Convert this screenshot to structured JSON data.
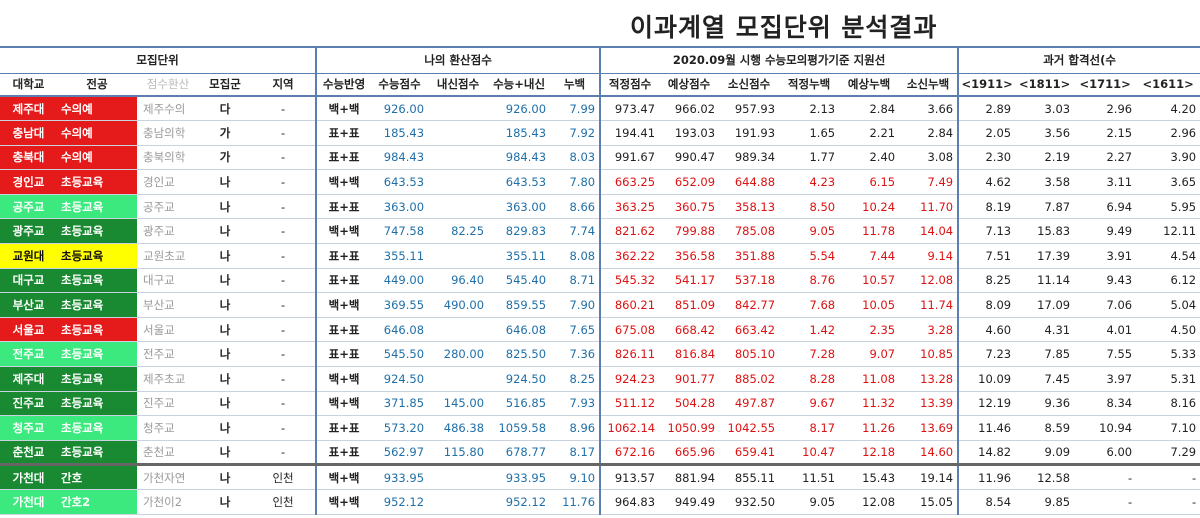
{
  "title": "이과계열 모집단위 분석결과",
  "colors": {
    "red": "#e51b1b",
    "dark_green": "#1a8a32",
    "light_green": "#3ce97e",
    "yellow": "#ffff00",
    "header_border": "#5a7fb0",
    "blue_text": "#1f6fa8",
    "red_text": "#d11111"
  },
  "group_headers": {
    "recruit": "모집단위",
    "my_score": "나의 환산점수",
    "mock": "2020.09월 시행 수능모의평가기준 지원선",
    "past": "과거 합격선(수"
  },
  "headers": [
    "대학교",
    "전공",
    "점수환산",
    "모집군",
    "지역",
    "수능반영",
    "수능점수",
    "내신점수",
    "수능+내신",
    "누백",
    "적정점수",
    "예상점수",
    "소신점수",
    "적정누백",
    "예상누백",
    "소신누백",
    "<1911>",
    "<1811>",
    "<1711>",
    "<1611>"
  ],
  "rows": [
    {
      "color": "red",
      "univ": "제주대",
      "major": "수의예",
      "conv": "제주수의",
      "gun": "다",
      "region": "-",
      "ref": "백+백",
      "suneung": "926.00",
      "naesin": "",
      "sum": "926.00",
      "nubaek": "7.99",
      "v": [
        "973.47",
        "966.02",
        "957.93",
        "2.13",
        "2.84",
        "3.66"
      ],
      "red_v": false,
      "past": [
        "2.89",
        "3.03",
        "2.96",
        "4.20"
      ]
    },
    {
      "color": "red",
      "univ": "충남대",
      "major": "수의예",
      "conv": "충남의학",
      "gun": "가",
      "region": "-",
      "ref": "표+표",
      "suneung": "185.43",
      "naesin": "",
      "sum": "185.43",
      "nubaek": "7.92",
      "v": [
        "194.41",
        "193.03",
        "191.93",
        "1.65",
        "2.21",
        "2.84"
      ],
      "red_v": false,
      "past": [
        "2.05",
        "3.56",
        "2.15",
        "2.96"
      ]
    },
    {
      "color": "red",
      "univ": "충북대",
      "major": "수의예",
      "conv": "충북의학",
      "gun": "가",
      "region": "-",
      "ref": "표+표",
      "suneung": "984.43",
      "naesin": "",
      "sum": "984.43",
      "nubaek": "8.03",
      "v": [
        "991.67",
        "990.47",
        "989.34",
        "1.77",
        "2.40",
        "3.08"
      ],
      "red_v": false,
      "past": [
        "2.30",
        "2.19",
        "2.27",
        "3.90"
      ]
    },
    {
      "color": "red",
      "univ": "경인교",
      "major": "초등교육",
      "conv": "경인교",
      "gun": "나",
      "region": "-",
      "ref": "백+백",
      "suneung": "643.53",
      "naesin": "",
      "sum": "643.53",
      "nubaek": "7.80",
      "v": [
        "663.25",
        "652.09",
        "644.88",
        "4.23",
        "6.15",
        "7.49"
      ],
      "red_v": true,
      "past": [
        "4.62",
        "3.58",
        "3.11",
        "3.65"
      ]
    },
    {
      "color": "light_green",
      "univ": "공주교",
      "major": "초등교육",
      "conv": "공주교",
      "gun": "나",
      "region": "-",
      "ref": "표+표",
      "suneung": "363.00",
      "naesin": "",
      "sum": "363.00",
      "nubaek": "8.66",
      "v": [
        "363.25",
        "360.75",
        "358.13",
        "8.50",
        "10.24",
        "11.70"
      ],
      "red_v": true,
      "past": [
        "8.19",
        "7.87",
        "6.94",
        "5.95"
      ]
    },
    {
      "color": "dark_green",
      "univ": "광주교",
      "major": "초등교육",
      "conv": "광주교",
      "gun": "나",
      "region": "-",
      "ref": "백+백",
      "suneung": "747.58",
      "naesin": "82.25",
      "sum": "829.83",
      "nubaek": "7.74",
      "v": [
        "821.62",
        "799.88",
        "785.08",
        "9.05",
        "11.78",
        "14.04"
      ],
      "red_v": true,
      "past": [
        "7.13",
        "15.83",
        "9.49",
        "12.11"
      ]
    },
    {
      "color": "yellow",
      "univ": "교원대",
      "major": "초등교육",
      "conv": "교원초교",
      "gun": "나",
      "region": "-",
      "ref": "표+표",
      "suneung": "355.11",
      "naesin": "",
      "sum": "355.11",
      "nubaek": "8.08",
      "v": [
        "362.22",
        "356.58",
        "351.88",
        "5.54",
        "7.44",
        "9.14"
      ],
      "red_v": true,
      "past": [
        "7.51",
        "17.39",
        "3.91",
        "4.54"
      ]
    },
    {
      "color": "dark_green",
      "univ": "대구교",
      "major": "초등교육",
      "conv": "대구교",
      "gun": "나",
      "region": "-",
      "ref": "표+표",
      "suneung": "449.00",
      "naesin": "96.40",
      "sum": "545.40",
      "nubaek": "8.71",
      "v": [
        "545.32",
        "541.17",
        "537.18",
        "8.76",
        "10.57",
        "12.08"
      ],
      "red_v": true,
      "past": [
        "8.25",
        "11.14",
        "9.43",
        "6.12"
      ]
    },
    {
      "color": "dark_green",
      "univ": "부산교",
      "major": "초등교육",
      "conv": "부산교",
      "gun": "나",
      "region": "-",
      "ref": "백+백",
      "suneung": "369.55",
      "naesin": "490.00",
      "sum": "859.55",
      "nubaek": "7.90",
      "v": [
        "860.21",
        "851.09",
        "842.77",
        "7.68",
        "10.05",
        "11.74"
      ],
      "red_v": true,
      "past": [
        "8.09",
        "17.09",
        "7.06",
        "5.04"
      ]
    },
    {
      "color": "red",
      "univ": "서울교",
      "major": "초등교육",
      "conv": "서울교",
      "gun": "나",
      "region": "-",
      "ref": "표+표",
      "suneung": "646.08",
      "naesin": "",
      "sum": "646.08",
      "nubaek": "7.65",
      "v": [
        "675.08",
        "668.42",
        "663.42",
        "1.42",
        "2.35",
        "3.28"
      ],
      "red_v": true,
      "past": [
        "4.60",
        "4.31",
        "4.01",
        "4.50"
      ]
    },
    {
      "color": "light_green",
      "univ": "전주교",
      "major": "초등교육",
      "conv": "전주교",
      "gun": "나",
      "region": "-",
      "ref": "표+표",
      "suneung": "545.50",
      "naesin": "280.00",
      "sum": "825.50",
      "nubaek": "7.36",
      "v": [
        "826.11",
        "816.84",
        "805.10",
        "7.28",
        "9.07",
        "10.85"
      ],
      "red_v": true,
      "past": [
        "7.23",
        "7.85",
        "7.55",
        "5.33"
      ]
    },
    {
      "color": "dark_green",
      "univ": "제주대",
      "major": "초등교육",
      "conv": "제주초교",
      "gun": "나",
      "region": "-",
      "ref": "백+백",
      "suneung": "924.50",
      "naesin": "",
      "sum": "924.50",
      "nubaek": "8.25",
      "v": [
        "924.23",
        "901.77",
        "885.02",
        "8.28",
        "11.08",
        "13.28"
      ],
      "red_v": true,
      "past": [
        "10.09",
        "7.45",
        "3.97",
        "5.31"
      ]
    },
    {
      "color": "dark_green",
      "univ": "진주교",
      "major": "초등교육",
      "conv": "진주교",
      "gun": "나",
      "region": "-",
      "ref": "백+백",
      "suneung": "371.85",
      "naesin": "145.00",
      "sum": "516.85",
      "nubaek": "7.93",
      "v": [
        "511.12",
        "504.28",
        "497.87",
        "9.67",
        "11.32",
        "13.39"
      ],
      "red_v": true,
      "past": [
        "12.19",
        "9.36",
        "8.34",
        "8.16"
      ]
    },
    {
      "color": "light_green",
      "univ": "청주교",
      "major": "초등교육",
      "conv": "청주교",
      "gun": "나",
      "region": "-",
      "ref": "표+표",
      "suneung": "573.20",
      "naesin": "486.38",
      "sum": "1059.58",
      "nubaek": "8.96",
      "v": [
        "1062.14",
        "1050.99",
        "1042.55",
        "8.17",
        "11.26",
        "13.69"
      ],
      "red_v": true,
      "past": [
        "11.46",
        "8.59",
        "10.94",
        "7.10"
      ]
    },
    {
      "color": "dark_green",
      "univ": "춘천교",
      "major": "초등교육",
      "conv": "춘천교",
      "gun": "나",
      "region": "-",
      "ref": "표+표",
      "suneung": "562.97",
      "naesin": "115.80",
      "sum": "678.77",
      "nubaek": "8.17",
      "v": [
        "672.16",
        "665.96",
        "659.41",
        "10.47",
        "12.18",
        "14.60"
      ],
      "red_v": true,
      "past": [
        "14.82",
        "9.09",
        "6.00",
        "7.29"
      ]
    },
    {
      "color": "dark_green",
      "univ": "가천대",
      "major": "간호",
      "conv": "가천자연",
      "gun": "나",
      "region": "인천",
      "ref": "백+백",
      "suneung": "933.95",
      "naesin": "",
      "sum": "933.95",
      "nubaek": "9.10",
      "v": [
        "913.57",
        "881.94",
        "855.11",
        "11.51",
        "15.43",
        "19.14"
      ],
      "red_v": false,
      "past": [
        "11.96",
        "12.58",
        "-",
        "-"
      ],
      "group_start": true
    },
    {
      "color": "light_green",
      "univ": "가천대",
      "major": "간호2",
      "conv": "가천이2",
      "gun": "나",
      "region": "인천",
      "ref": "백+백",
      "suneung": "952.12",
      "naesin": "",
      "sum": "952.12",
      "nubaek": "11.76",
      "v": [
        "964.83",
        "949.49",
        "932.50",
        "9.05",
        "12.08",
        "15.05"
      ],
      "red_v": false,
      "past": [
        "8.54",
        "9.85",
        "-",
        "-"
      ]
    }
  ]
}
